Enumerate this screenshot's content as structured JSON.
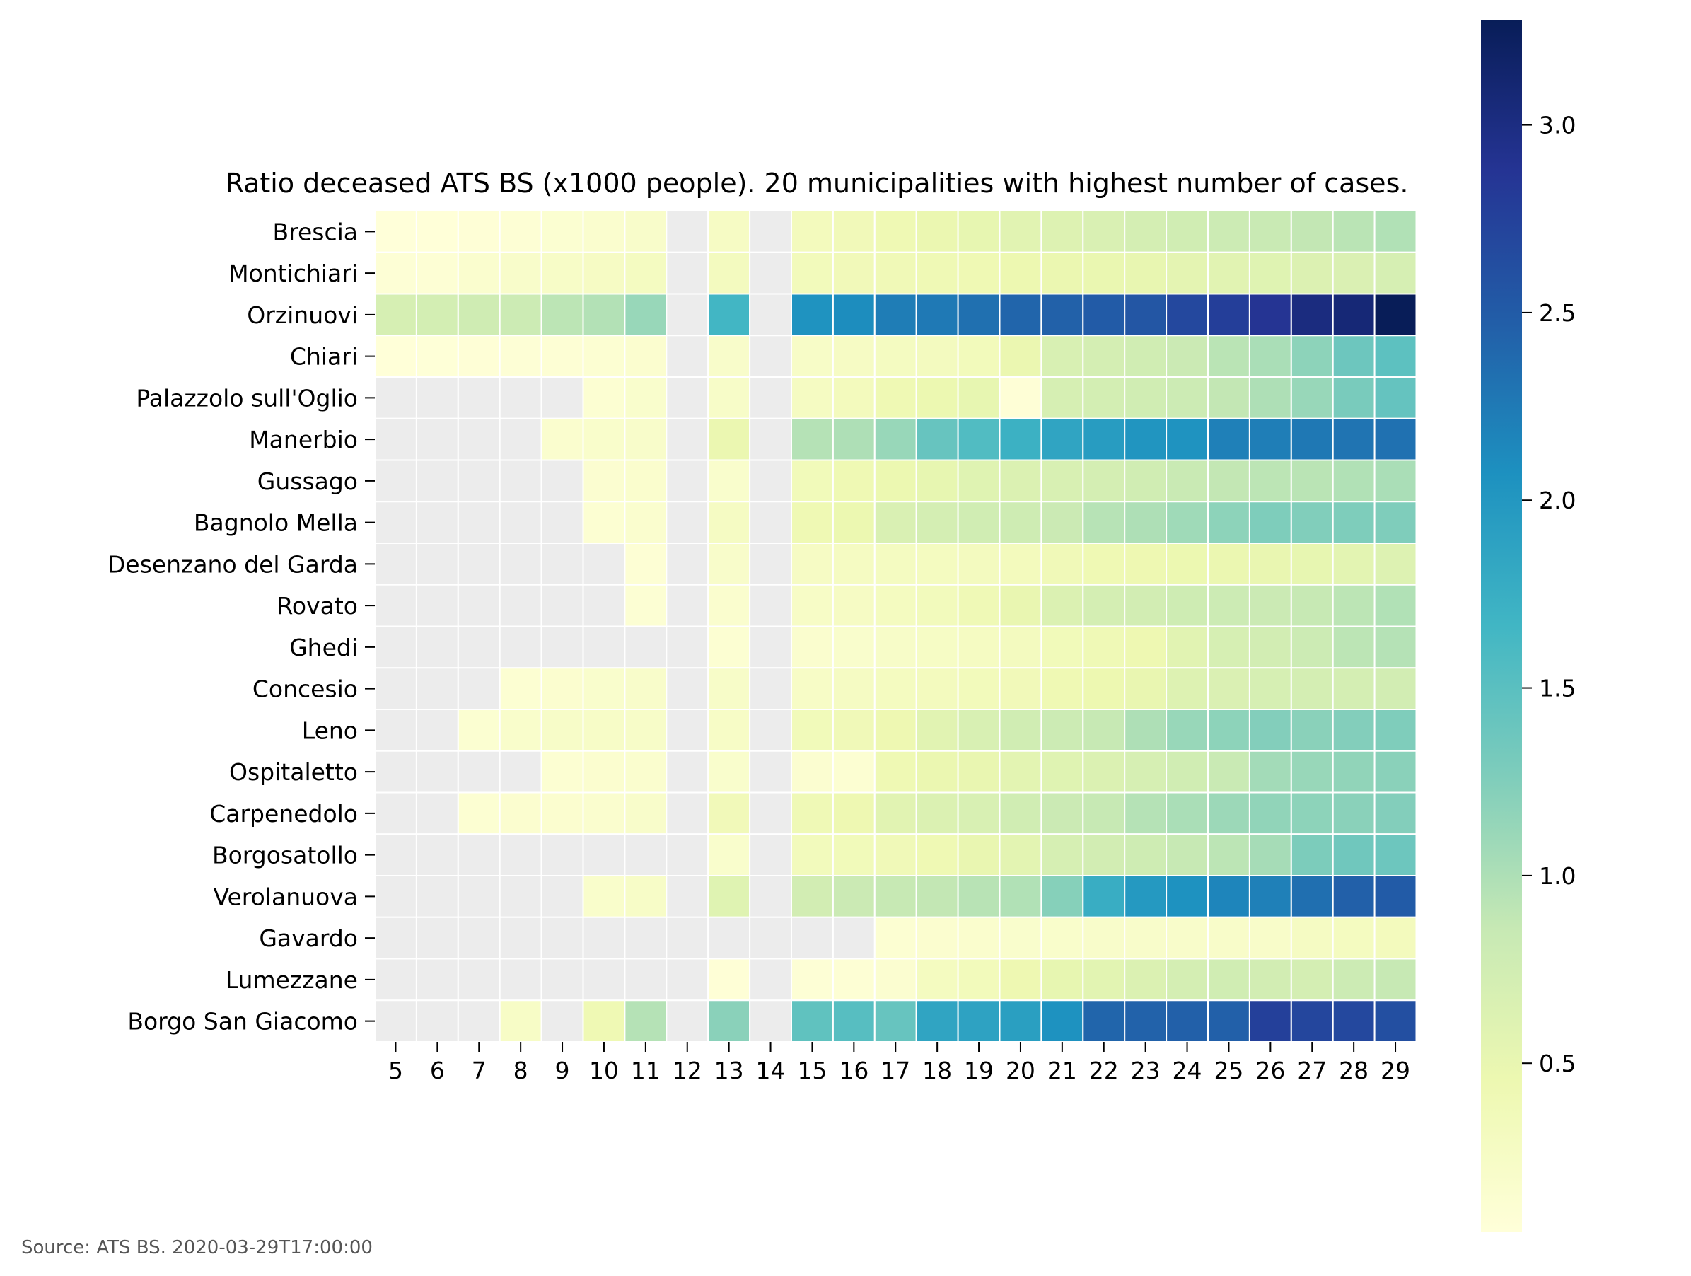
{
  "chart_data": {
    "type": "heatmap",
    "title": "Ratio deceased ATS BS (x1000 people). 20 municipalities with highest number of cases.",
    "source": "Source: ATS BS. 2020-03-29T17:00:00",
    "x": [
      "5",
      "6",
      "7",
      "8",
      "9",
      "10",
      "11",
      "12",
      "13",
      "14",
      "15",
      "16",
      "17",
      "18",
      "19",
      "20",
      "21",
      "22",
      "23",
      "24",
      "25",
      "26",
      "27",
      "28",
      "29"
    ],
    "y": [
      "Brescia",
      "Montichiari",
      "Orzinuovi",
      "Chiari",
      "Palazzolo sull'Oglio",
      "Manerbio",
      "Gussago",
      "Bagnolo Mella",
      "Desenzano del Garda",
      "Rovato",
      "Ghedi",
      "Concesio",
      "Leno",
      "Ospitaletto",
      "Carpenedolo",
      "Borgosatollo",
      "Verolanuova",
      "Gavardo",
      "Lumezzane",
      "Borgo San Giacomo"
    ],
    "values": [
      [
        0.05,
        0.06,
        0.08,
        0.1,
        0.13,
        0.16,
        0.2,
        null,
        0.26,
        null,
        0.33,
        0.37,
        0.42,
        0.47,
        0.52,
        0.58,
        0.62,
        0.67,
        0.72,
        0.76,
        0.8,
        0.84,
        0.88,
        0.93,
        0.98
      ],
      [
        0.09,
        0.1,
        0.16,
        0.2,
        0.23,
        0.26,
        0.29,
        null,
        0.31,
        null,
        0.35,
        0.37,
        0.39,
        0.41,
        0.42,
        0.45,
        0.47,
        0.49,
        0.51,
        0.55,
        0.58,
        0.6,
        0.63,
        0.66,
        0.7
      ],
      [
        0.7,
        0.73,
        0.77,
        0.8,
        0.92,
        0.97,
        1.12,
        null,
        1.66,
        null,
        2.05,
        2.1,
        2.23,
        2.26,
        2.33,
        2.42,
        2.45,
        2.5,
        2.55,
        2.68,
        2.78,
        2.88,
        3.02,
        3.08,
        3.28
      ],
      [
        0.06,
        0.07,
        0.08,
        0.09,
        0.1,
        0.12,
        0.15,
        null,
        0.2,
        null,
        0.23,
        0.26,
        0.29,
        0.31,
        0.35,
        0.48,
        0.68,
        0.72,
        0.76,
        0.82,
        0.93,
        1.02,
        1.18,
        1.38,
        1.48
      ],
      [
        null,
        null,
        null,
        null,
        null,
        0.12,
        0.18,
        null,
        0.22,
        null,
        0.28,
        0.33,
        0.42,
        0.46,
        0.52,
        0.08,
        0.7,
        0.73,
        0.76,
        0.8,
        0.88,
        1.0,
        1.12,
        1.3,
        1.43
      ],
      [
        null,
        null,
        null,
        null,
        0.16,
        0.19,
        0.2,
        null,
        0.48,
        null,
        0.96,
        1.0,
        1.12,
        1.42,
        1.56,
        1.72,
        1.86,
        1.95,
        2.02,
        2.05,
        2.2,
        2.22,
        2.27,
        2.3,
        2.32
      ],
      [
        null,
        null,
        null,
        null,
        null,
        0.14,
        0.17,
        null,
        0.18,
        null,
        0.36,
        0.42,
        0.46,
        0.52,
        0.6,
        0.65,
        0.68,
        0.72,
        0.76,
        0.84,
        0.88,
        0.92,
        0.93,
        0.98,
        1.02
      ],
      [
        null,
        null,
        null,
        null,
        null,
        0.12,
        0.16,
        null,
        0.27,
        null,
        0.42,
        0.46,
        0.67,
        0.72,
        0.76,
        0.78,
        0.82,
        0.95,
        1.0,
        1.08,
        1.18,
        1.27,
        1.25,
        1.27,
        1.26
      ],
      [
        null,
        null,
        null,
        null,
        null,
        null,
        0.1,
        null,
        0.2,
        null,
        0.26,
        0.28,
        0.29,
        0.3,
        0.31,
        0.33,
        0.38,
        0.42,
        0.44,
        0.46,
        0.48,
        0.5,
        0.52,
        0.56,
        0.62
      ],
      [
        null,
        null,
        null,
        null,
        null,
        null,
        0.11,
        null,
        0.16,
        null,
        0.24,
        0.26,
        0.3,
        0.34,
        0.4,
        0.5,
        0.64,
        0.72,
        0.74,
        0.78,
        0.8,
        0.82,
        0.86,
        0.92,
        0.98
      ],
      [
        null,
        null,
        null,
        null,
        null,
        null,
        null,
        null,
        0.12,
        null,
        0.16,
        0.18,
        0.22,
        0.25,
        0.28,
        0.31,
        0.36,
        0.4,
        0.44,
        0.58,
        0.7,
        0.74,
        0.8,
        0.92,
        0.96
      ],
      [
        null,
        null,
        null,
        0.12,
        0.15,
        0.18,
        0.2,
        null,
        0.22,
        null,
        0.24,
        0.27,
        0.3,
        0.32,
        0.35,
        0.37,
        0.42,
        0.45,
        0.5,
        0.62,
        0.66,
        0.7,
        0.72,
        0.72,
        0.74
      ],
      [
        null,
        null,
        0.13,
        0.19,
        0.22,
        0.23,
        0.22,
        null,
        0.24,
        null,
        0.36,
        0.38,
        0.44,
        0.58,
        0.68,
        0.76,
        0.8,
        0.86,
        1.0,
        1.12,
        1.18,
        1.24,
        1.2,
        1.24,
        1.26
      ],
      [
        null,
        null,
        null,
        null,
        0.12,
        0.15,
        0.16,
        null,
        0.18,
        null,
        0.14,
        0.12,
        0.42,
        0.48,
        0.5,
        0.56,
        0.6,
        0.64,
        0.7,
        0.76,
        0.84,
        1.06,
        1.12,
        1.16,
        1.2
      ],
      [
        null,
        null,
        0.12,
        0.15,
        0.15,
        0.16,
        0.2,
        null,
        0.37,
        null,
        0.4,
        0.44,
        0.58,
        0.64,
        0.68,
        0.76,
        0.82,
        0.86,
        0.96,
        1.02,
        1.1,
        1.16,
        1.18,
        1.2,
        1.24
      ],
      [
        null,
        null,
        null,
        null,
        null,
        null,
        null,
        null,
        0.18,
        null,
        0.34,
        0.36,
        0.38,
        0.42,
        0.5,
        0.56,
        0.7,
        0.74,
        0.78,
        0.86,
        0.92,
        1.04,
        1.28,
        1.36,
        1.38
      ],
      [
        null,
        null,
        null,
        null,
        null,
        0.19,
        0.23,
        null,
        0.6,
        null,
        0.74,
        0.82,
        0.86,
        0.88,
        0.94,
        0.98,
        1.22,
        1.76,
        1.98,
        2.06,
        2.16,
        2.2,
        2.34,
        2.46,
        2.5
      ],
      [
        null,
        null,
        null,
        null,
        null,
        null,
        null,
        null,
        null,
        null,
        null,
        null,
        0.12,
        0.15,
        0.17,
        0.18,
        0.19,
        0.2,
        0.2,
        0.2,
        0.21,
        0.21,
        0.27,
        0.3,
        0.33
      ],
      [
        null,
        null,
        null,
        null,
        null,
        null,
        null,
        null,
        0.08,
        null,
        0.09,
        0.1,
        0.14,
        0.3,
        0.35,
        0.44,
        0.52,
        0.57,
        0.64,
        0.72,
        0.76,
        0.74,
        0.72,
        0.8,
        0.86
      ],
      [
        null,
        null,
        null,
        0.24,
        null,
        0.42,
        0.96,
        null,
        1.2,
        null,
        1.46,
        1.52,
        1.42,
        1.86,
        1.88,
        1.92,
        2.06,
        2.42,
        2.44,
        2.46,
        2.46,
        2.76,
        2.7,
        2.68,
        2.62
      ]
    ],
    "missing_color": "#ececec",
    "colormap": "YlGnBu",
    "vmin": 0.05,
    "vmax": 3.28,
    "colorbar_ticks": [
      "0.5",
      "1.0",
      "1.5",
      "2.0",
      "2.5",
      "3.0"
    ],
    "colorbar_tick_values": [
      0.5,
      1.0,
      1.5,
      2.0,
      2.5,
      3.0
    ],
    "colorbar_placement": "right",
    "grid": true
  }
}
